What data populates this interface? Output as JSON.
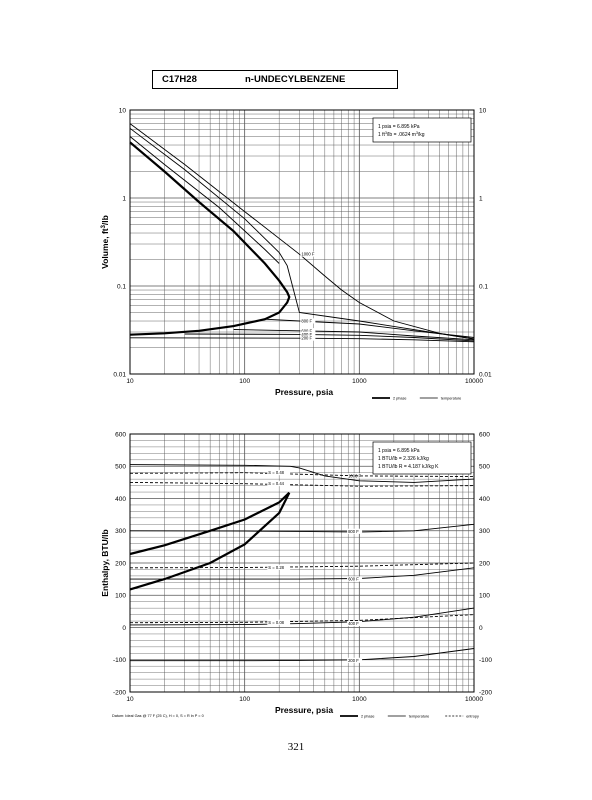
{
  "header": {
    "formula": "C17H28",
    "compound": "n-UNDECYLBENZENE"
  },
  "page_number": "321",
  "colors": {
    "ink": "#000000",
    "grid": "#555555",
    "paper": "#ffffff"
  },
  "chart_data": [
    {
      "type": "line",
      "scale": {
        "x": "log",
        "y": "log"
      },
      "xlabel": "Pressure,  psia",
      "ylabel": "Volume, ft^3/lb",
      "xlim": [
        10,
        10000
      ],
      "ylim": [
        0.01,
        10
      ],
      "grid": true,
      "x_ticks": [
        "10",
        "100",
        "1000",
        "10000"
      ],
      "y_ticks": [
        "0.01",
        "0.1",
        "1",
        "10"
      ],
      "y_ticks_right": [
        "0.01",
        "0.1",
        "1",
        "10"
      ],
      "conversion_box": {
        "lines": [
          "1 psia  =  6.895 kPa",
          "1 ft^3/lb  =  .0624 m^3/kg"
        ],
        "position": "top-right"
      },
      "legend": {
        "position": "bottom-right",
        "entries": [
          "2 phase",
          "temperature"
        ]
      },
      "series": [
        {
          "label": "2 phase",
          "style": "bold",
          "x": [
            10,
            20,
            40,
            80,
            150,
            200,
            235,
            245,
            235,
            200,
            150,
            80,
            40,
            20,
            10
          ],
          "y": [
            4.3,
            2.0,
            0.9,
            0.42,
            0.18,
            0.115,
            0.085,
            0.075,
            0.065,
            0.05,
            0.042,
            0.035,
            0.031,
            0.029,
            0.028
          ]
        },
        {
          "label": "1000 F",
          "x": [
            10,
            30,
            100,
            300,
            500,
            700,
            1000,
            2000,
            5000,
            10000
          ],
          "y": [
            7.0,
            2.4,
            0.7,
            0.23,
            0.13,
            0.09,
            0.065,
            0.04,
            0.029,
            0.025
          ]
        },
        {
          "label": "",
          "x": [
            10,
            30,
            100,
            200,
            235,
            300,
            1000,
            10000
          ],
          "y": [
            6.2,
            2.1,
            0.58,
            0.24,
            0.17,
            0.05,
            0.04,
            0.025
          ]
        },
        {
          "label": "",
          "x": [
            10,
            20,
            60,
            150,
            200
          ],
          "y": [
            5.0,
            2.4,
            0.78,
            0.26,
            0.18
          ]
        },
        {
          "label": "800 F",
          "x": [
            150,
            300,
            1000,
            3000,
            10000
          ],
          "y": [
            0.042,
            0.04,
            0.037,
            0.031,
            0.026
          ]
        },
        {
          "label": "600 F",
          "x": [
            80,
            300,
            1000,
            3000,
            10000
          ],
          "y": [
            0.032,
            0.031,
            0.03,
            0.027,
            0.0245
          ]
        },
        {
          "label": "400 F",
          "x": [
            30,
            300,
            1000,
            3000,
            10000
          ],
          "y": [
            0.0285,
            0.0282,
            0.0275,
            0.026,
            0.0238
          ]
        },
        {
          "label": "200 F",
          "x": [
            10,
            300,
            1000,
            3000,
            10000
          ],
          "y": [
            0.0258,
            0.0255,
            0.0252,
            0.0245,
            0.0232
          ]
        }
      ]
    },
    {
      "type": "line",
      "scale": {
        "x": "log",
        "y": "linear"
      },
      "xlabel": "Pressure,  psia",
      "ylabel": "Enthalpy, BTU/lb",
      "xlim": [
        10,
        10000
      ],
      "ylim": [
        -200,
        600
      ],
      "grid": true,
      "x_ticks": [
        "10",
        "100",
        "1000",
        "10000"
      ],
      "y_ticks": [
        "-200",
        "-100",
        "0",
        "100",
        "200",
        "300",
        "400",
        "500",
        "600"
      ],
      "y_ticks_right": [
        "-200",
        "-100",
        "0",
        "100",
        "200",
        "300",
        "400",
        "500",
        "600"
      ],
      "conversion_box": {
        "lines": [
          "1 psia  =  6.895 kPa",
          "1 BTU/lb  =  2.326 kJ/kg",
          "1 BTU/lb R  =  4.187 kJ/kg K"
        ],
        "position": "top-right"
      },
      "legend": {
        "position": "bottom-right",
        "entries": [
          "2 phase",
          "temperature",
          "entropy"
        ]
      },
      "footnote": "Datum: Ideal Gas @ 77 F (25 C),  H = 0,  S = R ln P = 0",
      "series": [
        {
          "label": "2 phase (vapor)",
          "style": "bold",
          "x": [
            10,
            20,
            50,
            100,
            200,
            245
          ],
          "y": [
            228,
            255,
            300,
            335,
            388,
            418
          ]
        },
        {
          "label": "2 phase (liquid)",
          "style": "bold",
          "x": [
            10,
            20,
            50,
            100,
            200,
            245
          ],
          "y": [
            118,
            150,
            200,
            258,
            355,
            418
          ]
        },
        {
          "label": "1000 F",
          "x": [
            10,
            100,
            250,
            300,
            500,
            1000,
            3000,
            10000
          ],
          "y": [
            505,
            503,
            500,
            495,
            470,
            455,
            450,
            460
          ]
        },
        {
          "label": "800 F",
          "x": [
            10,
            100,
            300,
            1000,
            3000,
            10000
          ],
          "y": [
            300,
            299,
            298,
            296,
            300,
            320
          ]
        },
        {
          "label": "600 F",
          "x": [
            10,
            100,
            300,
            1000,
            3000,
            10000
          ],
          "y": [
            150,
            150,
            150,
            152,
            162,
            185
          ]
        },
        {
          "label": "400 F",
          "x": [
            10,
            100,
            300,
            1000,
            3000,
            10000
          ],
          "y": [
            8,
            9,
            12,
            18,
            32,
            60
          ]
        },
        {
          "label": "200 F",
          "x": [
            10,
            100,
            300,
            1000,
            3000,
            10000
          ],
          "y": [
            -103,
            -103,
            -102,
            -100,
            -90,
            -65
          ]
        },
        {
          "label": "S = 0.48",
          "style": "dashed",
          "x": [
            10,
            100,
            1000,
            10000
          ],
          "y": [
            478,
            480,
            470,
            468
          ]
        },
        {
          "label": "S = 0.44",
          "style": "dashed",
          "x": [
            10,
            100,
            1000,
            10000
          ],
          "y": [
            450,
            446,
            438,
            440
          ]
        },
        {
          "label": "S = 0.28",
          "style": "dashed",
          "x": [
            10,
            100,
            1000,
            10000
          ],
          "y": [
            185,
            186,
            190,
            200
          ]
        },
        {
          "label": "S = 0.08",
          "style": "dashed",
          "x": [
            10,
            100,
            1000,
            10000
          ],
          "y": [
            15,
            16,
            22,
            40
          ]
        }
      ]
    }
  ]
}
